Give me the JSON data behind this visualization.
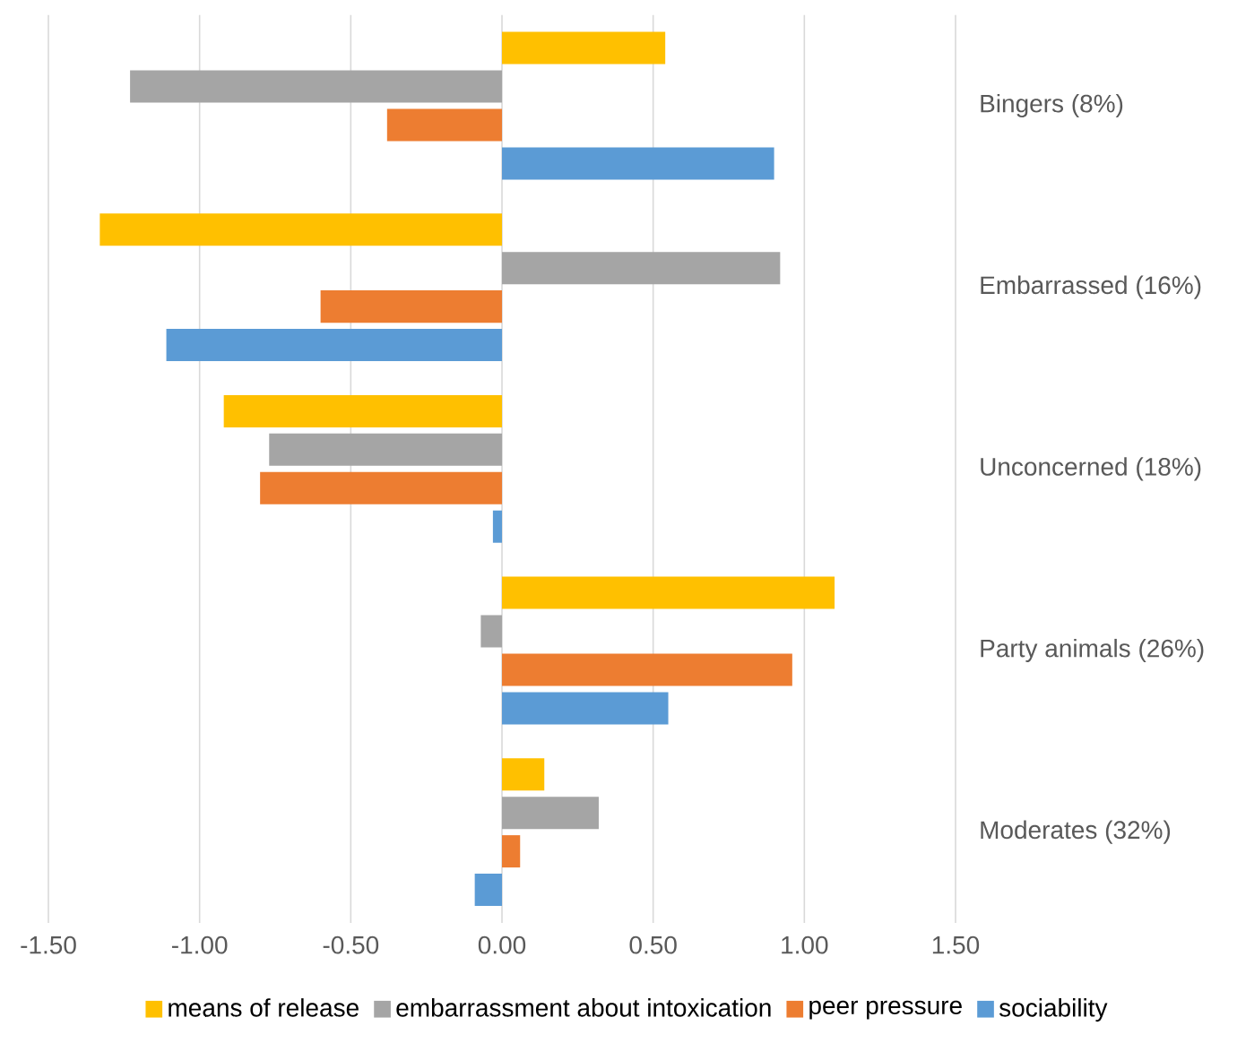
{
  "chart_data": {
    "type": "bar",
    "orientation": "horizontal",
    "categories": [
      "Bingers (8%)",
      "Embarrassed (16%)",
      "Unconcerned (18%)",
      "Party animals (26%)",
      "Moderates (32%)"
    ],
    "series": [
      {
        "name": "means of release",
        "color": "#ffc000",
        "values": [
          0.54,
          -1.33,
          -0.92,
          1.1,
          0.14
        ]
      },
      {
        "name": "embarrassment about intoxication",
        "color": "#a5a5a5",
        "values": [
          -1.23,
          0.92,
          -0.77,
          -0.07,
          0.32
        ]
      },
      {
        "name": "peer pressure",
        "color": "#ed7d31",
        "values": [
          -0.38,
          -0.6,
          -0.8,
          0.96,
          0.06
        ]
      },
      {
        "name": "sociability",
        "color": "#5b9bd5",
        "values": [
          0.9,
          -1.11,
          -0.03,
          0.55,
          -0.09
        ]
      }
    ],
    "xlim": [
      -1.5,
      1.5
    ],
    "xticks": [
      {
        "value": -1.5,
        "label": "-1.50"
      },
      {
        "value": -1.0,
        "label": "-1.00"
      },
      {
        "value": -0.5,
        "label": "-0.50"
      },
      {
        "value": 0,
        "label": "0.00"
      },
      {
        "value": 0.5,
        "label": "0.50"
      },
      {
        "value": 1.0,
        "label": "1.00"
      },
      {
        "value": 1.5,
        "label": "1.50"
      }
    ],
    "grid": "x",
    "legend": "bottom"
  }
}
